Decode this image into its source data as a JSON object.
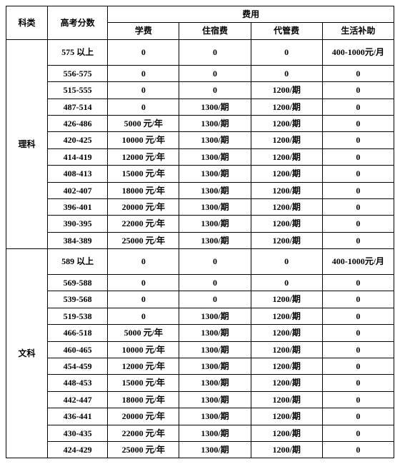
{
  "headers": {
    "category": "科类",
    "score": "高考分数",
    "fee_group": "费用",
    "tuition": "学费",
    "accommodation": "住宿费",
    "agency": "代管费",
    "living": "生活补助"
  },
  "sections": [
    {
      "category": "理科",
      "rows": [
        {
          "score": "575 以上",
          "tuition": "0",
          "accommodation": "0",
          "agency": "0",
          "living": "400-1000元/月",
          "tall": true
        },
        {
          "score": "556-575",
          "tuition": "0",
          "accommodation": "0",
          "agency": "0",
          "living": "0"
        },
        {
          "score": "515-555",
          "tuition": "0",
          "accommodation": "0",
          "agency": "1200/期",
          "living": "0"
        },
        {
          "score": "487-514",
          "tuition": "0",
          "accommodation": "1300/期",
          "agency": "1200/期",
          "living": "0"
        },
        {
          "score": "426-486",
          "tuition": "5000 元/年",
          "accommodation": "1300/期",
          "agency": "1200/期",
          "living": "0"
        },
        {
          "score": "420-425",
          "tuition": "10000 元/年",
          "accommodation": "1300/期",
          "agency": "1200/期",
          "living": "0"
        },
        {
          "score": "414-419",
          "tuition": "12000 元/年",
          "accommodation": "1300/期",
          "agency": "1200/期",
          "living": "0"
        },
        {
          "score": "408-413",
          "tuition": "15000 元/年",
          "accommodation": "1300/期",
          "agency": "1200/期",
          "living": "0"
        },
        {
          "score": "402-407",
          "tuition": "18000 元/年",
          "accommodation": "1300/期",
          "agency": "1200/期",
          "living": "0"
        },
        {
          "score": "396-401",
          "tuition": "20000 元/年",
          "accommodation": "1300/期",
          "agency": "1200/期",
          "living": "0"
        },
        {
          "score": "390-395",
          "tuition": "22000 元/年",
          "accommodation": "1300/期",
          "agency": "1200/期",
          "living": "0"
        },
        {
          "score": "384-389",
          "tuition": "25000 元/年",
          "accommodation": "1300/期",
          "agency": "1200/期",
          "living": "0"
        }
      ]
    },
    {
      "category": "文科",
      "rows": [
        {
          "score": "589 以上",
          "tuition": "0",
          "accommodation": "0",
          "agency": "0",
          "living": "400-1000元/月",
          "tall": true
        },
        {
          "score": "569-588",
          "tuition": "0",
          "accommodation": "0",
          "agency": "0",
          "living": "0"
        },
        {
          "score": "539-568",
          "tuition": "0",
          "accommodation": "0",
          "agency": "1200/期",
          "living": "0"
        },
        {
          "score": "519-538",
          "tuition": "0",
          "accommodation": "1300/期",
          "agency": "1200/期",
          "living": "0"
        },
        {
          "score": "466-518",
          "tuition": "5000 元/年",
          "accommodation": "1300/期",
          "agency": "1200/期",
          "living": "0"
        },
        {
          "score": "460-465",
          "tuition": "10000 元/年",
          "accommodation": "1300/期",
          "agency": "1200/期",
          "living": "0"
        },
        {
          "score": "454-459",
          "tuition": "12000 元/年",
          "accommodation": "1300/期",
          "agency": "1200/期",
          "living": "0"
        },
        {
          "score": "448-453",
          "tuition": "15000 元/年",
          "accommodation": "1300/期",
          "agency": "1200/期",
          "living": "0"
        },
        {
          "score": "442-447",
          "tuition": "18000 元/年",
          "accommodation": "1300/期",
          "agency": "1200/期",
          "living": "0"
        },
        {
          "score": "436-441",
          "tuition": "20000 元/年",
          "accommodation": "1300/期",
          "agency": "1200/期",
          "living": "0"
        },
        {
          "score": "430-435",
          "tuition": "22000 元/年",
          "accommodation": "1300/期",
          "agency": "1200/期",
          "living": "0"
        },
        {
          "score": "424-429",
          "tuition": "25000 元/年",
          "accommodation": "1300/期",
          "agency": "1200/期",
          "living": "0"
        }
      ]
    }
  ]
}
